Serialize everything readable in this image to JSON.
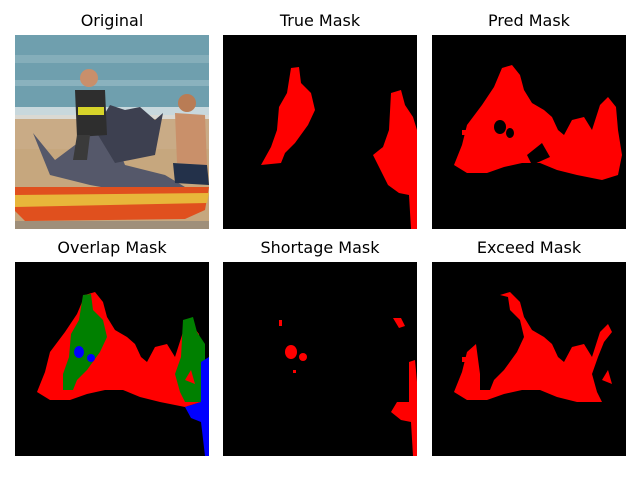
{
  "panels": [
    {
      "title": "Original"
    },
    {
      "title": "True Mask"
    },
    {
      "title": "Pred Mask"
    },
    {
      "title": "Overlap Mask"
    },
    {
      "title": "Shortage Mask"
    },
    {
      "title": "Exceed Mask"
    }
  ],
  "colors": {
    "background": "#000000",
    "mask": "#ff0000",
    "overlap": "#008000",
    "missing": "#0000ff",
    "sea": "#6f9fae",
    "sand": "#c6a77e",
    "kayak": "#e0501e",
    "fish": "#55586a"
  }
}
